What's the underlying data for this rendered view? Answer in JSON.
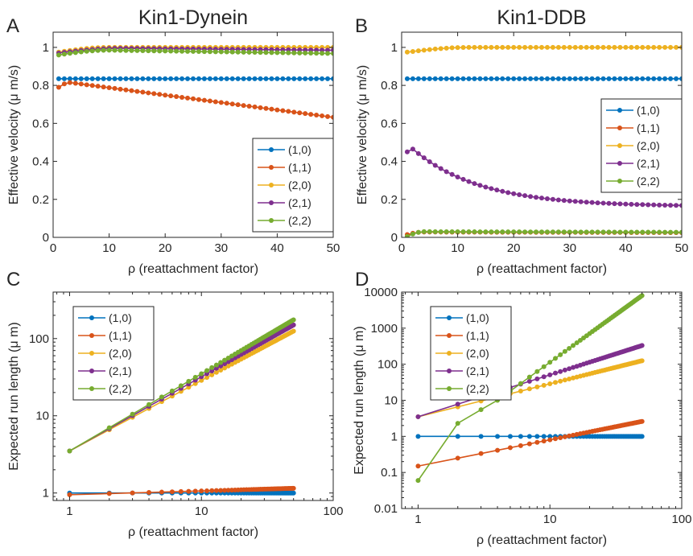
{
  "chart_data": [
    {
      "id": "A",
      "type": "line",
      "panel_letter": "A",
      "title": "Kin1-Dynein",
      "xlabel": "ρ (reattachment factor)",
      "ylabel": "Effective velocity (μ m/s)",
      "xscale": "linear",
      "yscale": "linear",
      "xlim": [
        0,
        50
      ],
      "ylim": [
        0,
        1.08
      ],
      "xticks": [
        0,
        10,
        20,
        30,
        40,
        50
      ],
      "yticks": [
        0,
        0.2,
        0.4,
        0.6,
        0.8,
        1
      ],
      "xtick_labels": [
        "0",
        "10",
        "20",
        "30",
        "40",
        "50"
      ],
      "ytick_labels": [
        "0",
        "0.2",
        "0.4",
        "0.6",
        "0.8",
        "1"
      ],
      "x": {
        "start": 1,
        "end": 50,
        "step": 1
      },
      "legend": {
        "position": "lower-right"
      },
      "series": [
        {
          "name": "(1,0)",
          "color": "#0072BD",
          "curve": "const",
          "params": {
            "v": 0.835
          }
        },
        {
          "name": "(1,1)",
          "color": "#D95319",
          "curve": "hump",
          "params": {
            "x0": 1,
            "y0": 0.79,
            "xp": 3,
            "yp": 0.815,
            "x1": 50,
            "y1": 0.632
          }
        },
        {
          "name": "(2,0)",
          "color": "#EDB120",
          "curve": "hump",
          "params": {
            "x0": 1,
            "y0": 0.975,
            "xp": 10,
            "yp": 1.0,
            "x1": 50,
            "y1": 1.0
          }
        },
        {
          "name": "(2,1)",
          "color": "#7E2F8E",
          "curve": "hump",
          "params": {
            "x0": 1,
            "y0": 0.97,
            "xp": 12,
            "yp": 0.995,
            "x1": 50,
            "y1": 0.985
          }
        },
        {
          "name": "(2,2)",
          "color": "#77AC30",
          "curve": "hump",
          "params": {
            "x0": 1,
            "y0": 0.96,
            "xp": 10,
            "yp": 0.985,
            "x1": 50,
            "y1": 0.968
          }
        }
      ]
    },
    {
      "id": "B",
      "type": "line",
      "panel_letter": "B",
      "title": "Kin1-DDB",
      "xlabel": "ρ (reattachment factor)",
      "ylabel": "Effective velocity (μ m/s)",
      "xscale": "linear",
      "yscale": "linear",
      "xlim": [
        0,
        50
      ],
      "ylim": [
        0,
        1.08
      ],
      "xticks": [
        0,
        10,
        20,
        30,
        40,
        50
      ],
      "yticks": [
        0,
        0.2,
        0.4,
        0.6,
        0.8,
        1
      ],
      "xtick_labels": [
        "0",
        "10",
        "20",
        "30",
        "40",
        "50"
      ],
      "ytick_labels": [
        "0",
        "0.2",
        "0.4",
        "0.6",
        "0.8",
        "1"
      ],
      "x": {
        "start": 1,
        "end": 50,
        "step": 1
      },
      "legend": {
        "position": "right"
      },
      "series": [
        {
          "name": "(1,0)",
          "color": "#0072BD",
          "curve": "const",
          "params": {
            "v": 0.835
          }
        },
        {
          "name": "(1,1)",
          "color": "#D95319",
          "curve": "hump",
          "params": {
            "x0": 1,
            "y0": 0.015,
            "xp": 4,
            "yp": 0.028,
            "x1": 50,
            "y1": 0.025
          }
        },
        {
          "name": "(2,0)",
          "color": "#EDB120",
          "curve": "hump",
          "params": {
            "x0": 1,
            "y0": 0.975,
            "xp": 12,
            "yp": 1.0,
            "x1": 50,
            "y1": 1.0
          }
        },
        {
          "name": "(2,1)",
          "color": "#7E2F8E",
          "curve": "decay",
          "params": {
            "x0": 1,
            "y0": 0.45,
            "xp": 2,
            "yp": 0.465,
            "x1": 50,
            "y1": 0.168,
            "k": 12
          }
        },
        {
          "name": "(2,2)",
          "color": "#77AC30",
          "curve": "hump",
          "params": {
            "x0": 1,
            "y0": 0.005,
            "xp": 4,
            "yp": 0.03,
            "x1": 50,
            "y1": 0.027
          }
        }
      ]
    },
    {
      "id": "C",
      "type": "line",
      "panel_letter": "C",
      "title": "",
      "xlabel": "ρ (reattachment factor)",
      "ylabel": "Expected run length (μ m)",
      "xscale": "log",
      "yscale": "log",
      "xlim": [
        0.75,
        100
      ],
      "ylim": [
        0.8,
        400
      ],
      "xticks": [
        1,
        10,
        100
      ],
      "yticks": [
        1,
        10,
        100
      ],
      "xtick_labels": [
        "1",
        "10",
        "100"
      ],
      "ytick_labels": [
        "1",
        "10",
        "100"
      ],
      "x": {
        "start": 1,
        "end": 50,
        "step": 1
      },
      "legend": {
        "position": "top-left"
      },
      "series": [
        {
          "name": "(1,0)",
          "color": "#0072BD",
          "curve": "const",
          "params": {
            "v": 1.0
          }
        },
        {
          "name": "(1,1)",
          "color": "#D95319",
          "curve": "power",
          "params": {
            "y1": 0.95,
            "y50": 1.15
          }
        },
        {
          "name": "(2,0)",
          "color": "#EDB120",
          "curve": "power",
          "params": {
            "y1": 3.5,
            "y50": 125
          }
        },
        {
          "name": "(2,1)",
          "color": "#7E2F8E",
          "curve": "power",
          "params": {
            "y1": 3.5,
            "y50": 150
          }
        },
        {
          "name": "(2,2)",
          "color": "#77AC30",
          "curve": "power",
          "params": {
            "y1": 3.5,
            "y50": 175
          }
        }
      ]
    },
    {
      "id": "D",
      "type": "line",
      "panel_letter": "D",
      "title": "",
      "xlabel": "ρ (reattachment factor)",
      "ylabel": "Expected run length (μ m)",
      "xscale": "log",
      "yscale": "log",
      "xlim": [
        0.75,
        100
      ],
      "ylim": [
        0.01,
        10000
      ],
      "xticks": [
        1,
        10,
        100
      ],
      "yticks": [
        0.01,
        0.1,
        1,
        10,
        100,
        1000,
        10000
      ],
      "xtick_labels": [
        "1",
        "10",
        "100"
      ],
      "ytick_labels": [
        "0.01",
        "0.1",
        "1",
        "10",
        "100",
        "1000",
        "10000"
      ],
      "x": {
        "start": 1,
        "end": 50,
        "step": 1
      },
      "legend": {
        "position": "top-left"
      },
      "series": [
        {
          "name": "(1,0)",
          "color": "#0072BD",
          "curve": "const",
          "params": {
            "v": 1.0
          }
        },
        {
          "name": "(1,1)",
          "color": "#D95319",
          "curve": "power",
          "params": {
            "y1": 0.15,
            "y50": 2.6
          }
        },
        {
          "name": "(2,0)",
          "color": "#EDB120",
          "curve": "power",
          "params": {
            "y1": 3.5,
            "y50": 125
          }
        },
        {
          "name": "(2,1)",
          "color": "#7E2F8E",
          "curve": "power",
          "params": {
            "y1": 3.5,
            "y50": 330
          }
        },
        {
          "name": "(2,2)",
          "color": "#77AC30",
          "curve": "points",
          "params": {
            "pts": [
              [
                1,
                0.06
              ],
              [
                2,
                2.3
              ],
              [
                3,
                5.5
              ],
              [
                4,
                10
              ],
              [
                50,
                8000
              ]
            ]
          }
        }
      ]
    }
  ]
}
